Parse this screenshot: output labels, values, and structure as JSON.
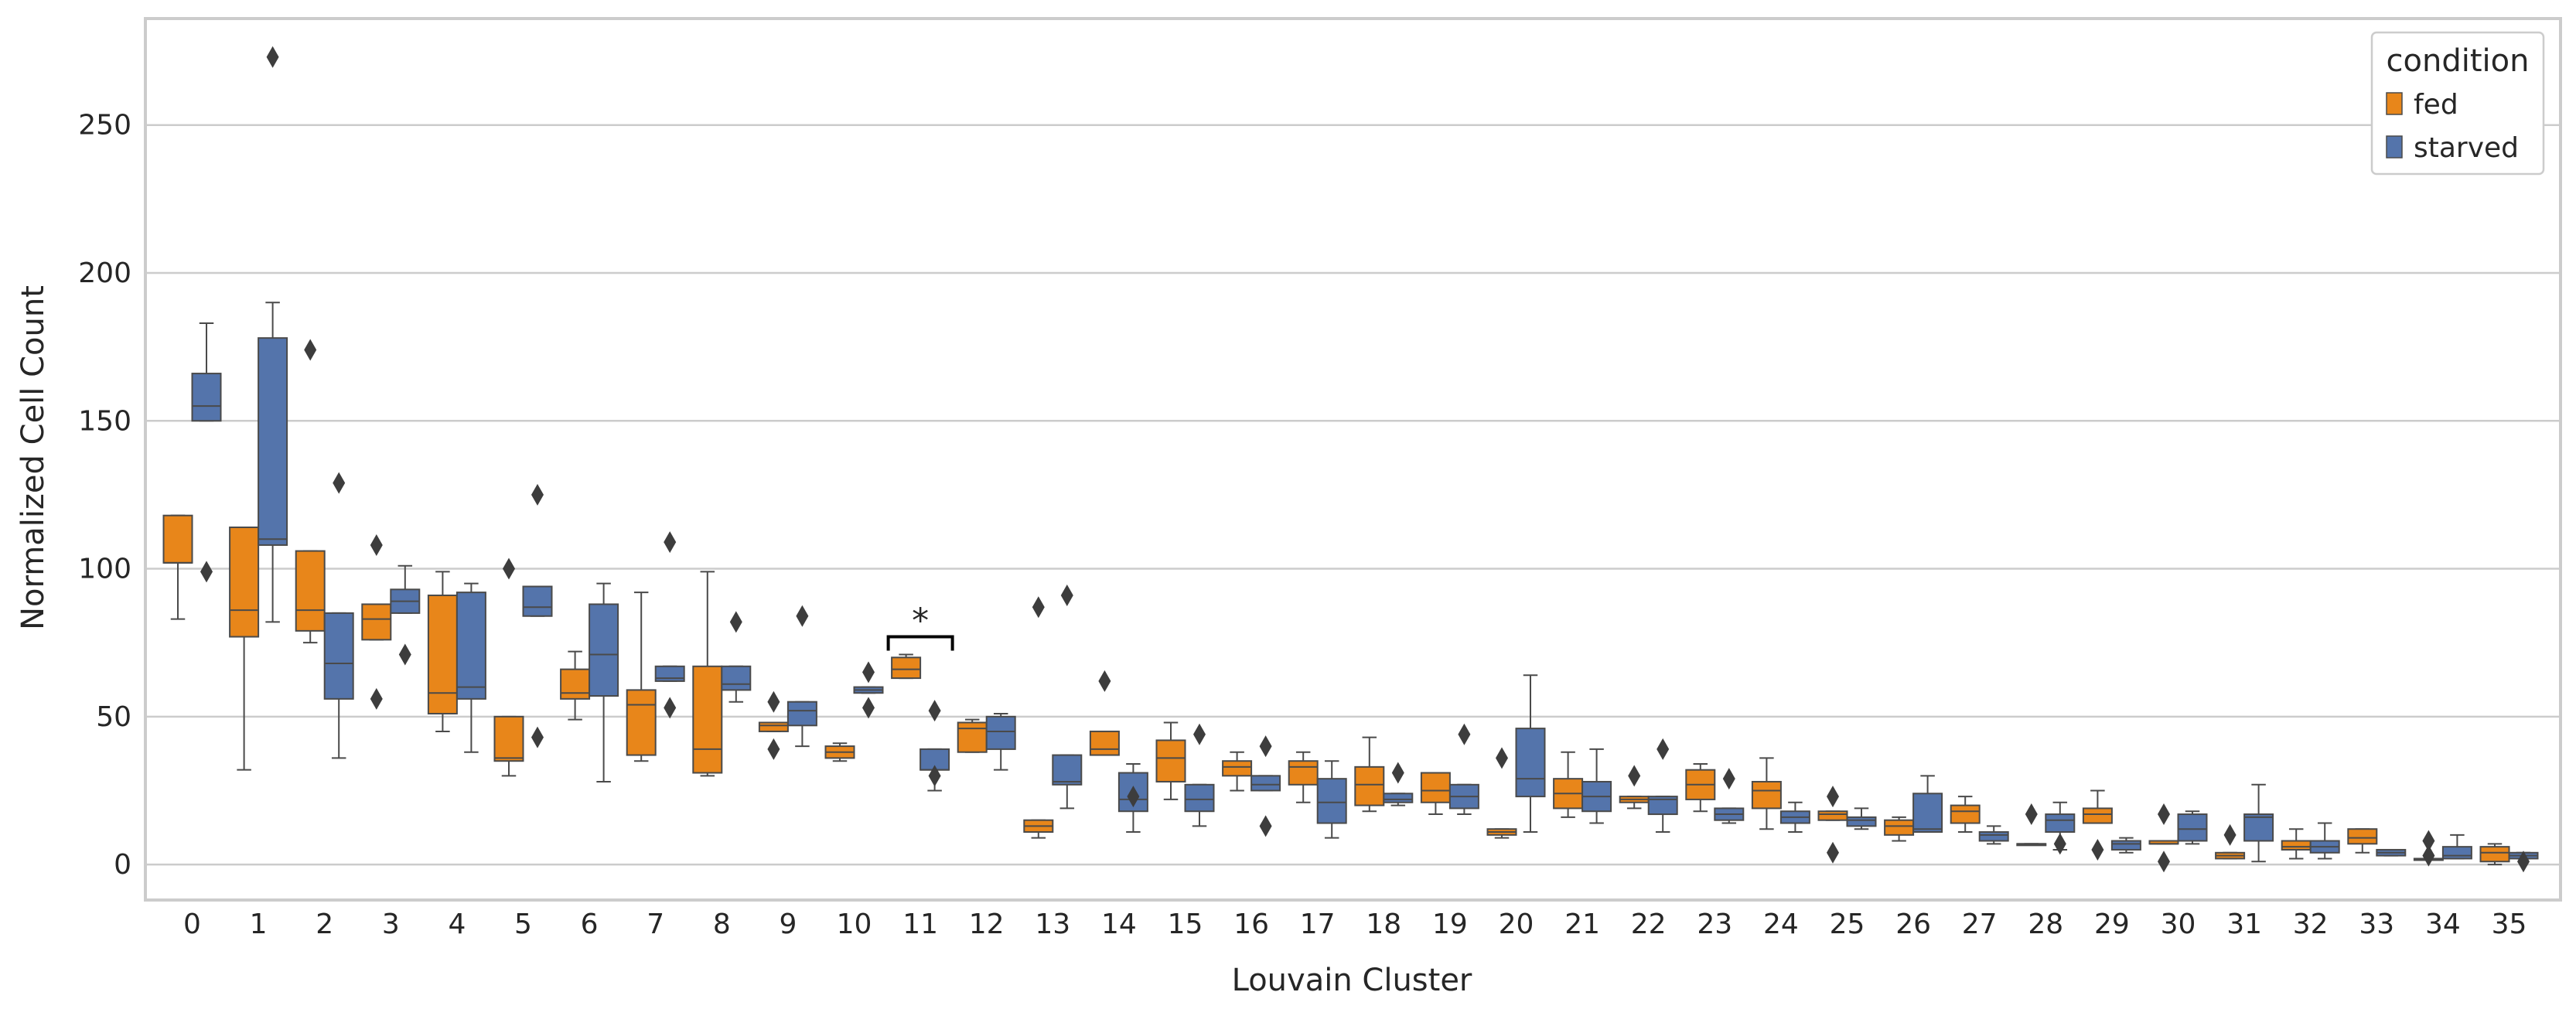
{
  "chart_data": {
    "type": "boxplot",
    "xlabel": "Louvain Cluster",
    "ylabel": "Normalized Cell Count",
    "ylim": [
      -12,
      286
    ],
    "yticks": [
      0,
      50,
      100,
      150,
      200,
      250
    ],
    "grid": true,
    "legend": {
      "title": "condition",
      "placement": "top-right",
      "entries": [
        "fed",
        "starved"
      ]
    },
    "categories": [
      "0",
      "1",
      "2",
      "3",
      "4",
      "5",
      "6",
      "7",
      "8",
      "9",
      "10",
      "11",
      "12",
      "13",
      "14",
      "15",
      "16",
      "17",
      "18",
      "19",
      "20",
      "21",
      "22",
      "23",
      "24",
      "25",
      "26",
      "27",
      "28",
      "29",
      "30",
      "31",
      "32",
      "33",
      "34",
      "35"
    ],
    "colors": {
      "fed": "#e8861a",
      "starved": "#5474ab",
      "edge": "#4a4a4a",
      "outlier": "#3d3d3d"
    },
    "annotations": [
      {
        "text": "*",
        "between": [
          "11",
          "11"
        ],
        "y": 77
      }
    ],
    "series": [
      {
        "name": "fed",
        "boxes": [
          {
            "whislo": 83,
            "q1": 102,
            "med": 102,
            "q3": 118,
            "whishi": 118,
            "fliers": []
          },
          {
            "whislo": 32,
            "q1": 77,
            "med": 86,
            "q3": 114,
            "whishi": 114,
            "fliers": []
          },
          {
            "whislo": 75,
            "q1": 79,
            "med": 86,
            "q3": 106,
            "whishi": 106,
            "fliers": [
              174
            ]
          },
          {
            "whislo": 76,
            "q1": 76,
            "med": 83,
            "q3": 88,
            "whishi": 88,
            "fliers": [
              108,
              56
            ]
          },
          {
            "whislo": 45,
            "q1": 51,
            "med": 58,
            "q3": 91,
            "whishi": 99,
            "fliers": []
          },
          {
            "whislo": 30,
            "q1": 35,
            "med": 36,
            "q3": 50,
            "whishi": 50,
            "fliers": [
              100
            ]
          },
          {
            "whislo": 49,
            "q1": 56,
            "med": 58,
            "q3": 66,
            "whishi": 72,
            "fliers": []
          },
          {
            "whislo": 35,
            "q1": 37,
            "med": 54,
            "q3": 59,
            "whishi": 92,
            "fliers": []
          },
          {
            "whislo": 30,
            "q1": 31,
            "med": 39,
            "q3": 67,
            "whishi": 99,
            "fliers": []
          },
          {
            "whislo": 45,
            "q1": 45,
            "med": 47,
            "q3": 48,
            "whishi": 48,
            "fliers": [
              55,
              39
            ]
          },
          {
            "whislo": 35,
            "q1": 36,
            "med": 38,
            "q3": 40,
            "whishi": 41,
            "fliers": []
          },
          {
            "whislo": 63,
            "q1": 63,
            "med": 66,
            "q3": 70,
            "whishi": 71,
            "fliers": []
          },
          {
            "whislo": 38,
            "q1": 38,
            "med": 46,
            "q3": 48,
            "whishi": 49,
            "fliers": []
          },
          {
            "whislo": 9,
            "q1": 11,
            "med": 13,
            "q3": 15,
            "whishi": 15,
            "fliers": [
              87
            ]
          },
          {
            "whislo": 37,
            "q1": 37,
            "med": 39,
            "q3": 45,
            "whishi": 45,
            "fliers": [
              62
            ]
          },
          {
            "whislo": 22,
            "q1": 28,
            "med": 36,
            "q3": 42,
            "whishi": 48,
            "fliers": []
          },
          {
            "whislo": 25,
            "q1": 30,
            "med": 33,
            "q3": 35,
            "whishi": 38,
            "fliers": []
          },
          {
            "whislo": 21,
            "q1": 27,
            "med": 33,
            "q3": 35,
            "whishi": 38,
            "fliers": []
          },
          {
            "whislo": 18,
            "q1": 20,
            "med": 27,
            "q3": 33,
            "whishi": 43,
            "fliers": []
          },
          {
            "whislo": 17,
            "q1": 21,
            "med": 25,
            "q3": 31,
            "whishi": 31,
            "fliers": []
          },
          {
            "whislo": 9,
            "q1": 10,
            "med": 11,
            "q3": 12,
            "whishi": 12,
            "fliers": [
              36
            ]
          },
          {
            "whislo": 16,
            "q1": 19,
            "med": 24,
            "q3": 29,
            "whishi": 38,
            "fliers": []
          },
          {
            "whislo": 19,
            "q1": 21,
            "med": 22,
            "q3": 23,
            "whishi": 23,
            "fliers": [
              30
            ]
          },
          {
            "whislo": 18,
            "q1": 22,
            "med": 27,
            "q3": 32,
            "whishi": 34,
            "fliers": []
          },
          {
            "whislo": 12,
            "q1": 19,
            "med": 25,
            "q3": 28,
            "whishi": 36,
            "fliers": []
          },
          {
            "whislo": 15,
            "q1": 15,
            "med": 17,
            "q3": 18,
            "whishi": 18,
            "fliers": [
              23,
              4
            ]
          },
          {
            "whislo": 8,
            "q1": 10,
            "med": 13,
            "q3": 15,
            "whishi": 16,
            "fliers": []
          },
          {
            "whislo": 11,
            "q1": 14,
            "med": 18,
            "q3": 20,
            "whishi": 23,
            "fliers": []
          },
          {
            "whislo": 7,
            "q1": 7,
            "med": 7,
            "q3": 7,
            "whishi": 7,
            "fliers": [
              17
            ]
          },
          {
            "whislo": 14,
            "q1": 14,
            "med": 17,
            "q3": 19,
            "whishi": 25,
            "fliers": [
              5
            ]
          },
          {
            "whislo": 7,
            "q1": 7,
            "med": 7,
            "q3": 8,
            "whishi": 8,
            "fliers": [
              17,
              1
            ]
          },
          {
            "whislo": 2,
            "q1": 2,
            "med": 3,
            "q3": 4,
            "whishi": 4,
            "fliers": [
              10
            ]
          },
          {
            "whislo": 2,
            "q1": 5,
            "med": 6,
            "q3": 8,
            "whishi": 12,
            "fliers": []
          },
          {
            "whislo": 4,
            "q1": 7,
            "med": 9,
            "q3": 12,
            "whishi": 12,
            "fliers": []
          },
          {
            "whislo": 2,
            "q1": 2,
            "med": 2,
            "q3": 2,
            "whishi": 2,
            "fliers": [
              8,
              3
            ]
          },
          {
            "whislo": 0,
            "q1": 1,
            "med": 4,
            "q3": 6,
            "whishi": 7,
            "fliers": []
          }
        ]
      },
      {
        "name": "starved",
        "boxes": [
          {
            "whislo": 150,
            "q1": 150,
            "med": 155,
            "q3": 166,
            "whishi": 183,
            "fliers": [
              99
            ]
          },
          {
            "whislo": 82,
            "q1": 108,
            "med": 110,
            "q3": 178,
            "whishi": 190,
            "fliers": [
              273
            ]
          },
          {
            "whislo": 36,
            "q1": 56,
            "med": 68,
            "q3": 85,
            "whishi": 85,
            "fliers": [
              129
            ]
          },
          {
            "whislo": 85,
            "q1": 85,
            "med": 89,
            "q3": 93,
            "whishi": 101,
            "fliers": [
              71
            ]
          },
          {
            "whislo": 38,
            "q1": 56,
            "med": 60,
            "q3": 92,
            "whishi": 95,
            "fliers": []
          },
          {
            "whislo": 84,
            "q1": 84,
            "med": 87,
            "q3": 94,
            "whishi": 94,
            "fliers": [
              125,
              43
            ]
          },
          {
            "whislo": 28,
            "q1": 57,
            "med": 71,
            "q3": 88,
            "whishi": 95,
            "fliers": []
          },
          {
            "whislo": 62,
            "q1": 62,
            "med": 63,
            "q3": 67,
            "whishi": 67,
            "fliers": [
              109,
              53
            ]
          },
          {
            "whislo": 55,
            "q1": 59,
            "med": 61,
            "q3": 67,
            "whishi": 67,
            "fliers": [
              82
            ]
          },
          {
            "whislo": 40,
            "q1": 47,
            "med": 52,
            "q3": 55,
            "whishi": 55,
            "fliers": [
              84
            ]
          },
          {
            "whislo": 58,
            "q1": 58,
            "med": 59,
            "q3": 60,
            "whishi": 60,
            "fliers": [
              65,
              53
            ]
          },
          {
            "whislo": 25,
            "q1": 32,
            "med": 32,
            "q3": 39,
            "whishi": 39,
            "fliers": [
              30,
              52
            ]
          },
          {
            "whislo": 32,
            "q1": 39,
            "med": 45,
            "q3": 50,
            "whishi": 51,
            "fliers": []
          },
          {
            "whislo": 19,
            "q1": 27,
            "med": 28,
            "q3": 37,
            "whishi": 37,
            "fliers": [
              91
            ]
          },
          {
            "whislo": 11,
            "q1": 18,
            "med": 22,
            "q3": 31,
            "whishi": 34,
            "fliers": [
              23
            ]
          },
          {
            "whislo": 13,
            "q1": 18,
            "med": 22,
            "q3": 27,
            "whishi": 27,
            "fliers": [
              44
            ]
          },
          {
            "whislo": 25,
            "q1": 25,
            "med": 27,
            "q3": 30,
            "whishi": 30,
            "fliers": [
              40,
              13
            ]
          },
          {
            "whislo": 9,
            "q1": 14,
            "med": 21,
            "q3": 29,
            "whishi": 35,
            "fliers": []
          },
          {
            "whislo": 20,
            "q1": 21,
            "med": 22,
            "q3": 24,
            "whishi": 24,
            "fliers": [
              31
            ]
          },
          {
            "whislo": 17,
            "q1": 19,
            "med": 23,
            "q3": 27,
            "whishi": 27,
            "fliers": [
              44
            ]
          },
          {
            "whislo": 11,
            "q1": 23,
            "med": 29,
            "q3": 46,
            "whishi": 64,
            "fliers": []
          },
          {
            "whislo": 14,
            "q1": 18,
            "med": 23,
            "q3": 28,
            "whishi": 39,
            "fliers": []
          },
          {
            "whislo": 11,
            "q1": 17,
            "med": 22,
            "q3": 23,
            "whishi": 23,
            "fliers": [
              39
            ]
          },
          {
            "whislo": 14,
            "q1": 15,
            "med": 17,
            "q3": 19,
            "whishi": 19,
            "fliers": [
              29
            ]
          },
          {
            "whislo": 11,
            "q1": 14,
            "med": 16,
            "q3": 18,
            "whishi": 21,
            "fliers": []
          },
          {
            "whislo": 12,
            "q1": 13,
            "med": 15,
            "q3": 16,
            "whishi": 19,
            "fliers": []
          },
          {
            "whislo": 11,
            "q1": 11,
            "med": 12,
            "q3": 24,
            "whishi": 30,
            "fliers": []
          },
          {
            "whislo": 7,
            "q1": 8,
            "med": 10,
            "q3": 11,
            "whishi": 13,
            "fliers": []
          },
          {
            "whislo": 5,
            "q1": 11,
            "med": 15,
            "q3": 17,
            "whishi": 21,
            "fliers": [
              7
            ]
          },
          {
            "whislo": 4,
            "q1": 5,
            "med": 7,
            "q3": 8,
            "whishi": 9,
            "fliers": []
          },
          {
            "whislo": 7,
            "q1": 8,
            "med": 12,
            "q3": 17,
            "whishi": 18,
            "fliers": []
          },
          {
            "whislo": 1,
            "q1": 8,
            "med": 16,
            "q3": 17,
            "whishi": 27,
            "fliers": []
          },
          {
            "whislo": 2,
            "q1": 4,
            "med": 6,
            "q3": 8,
            "whishi": 14,
            "fliers": []
          },
          {
            "whislo": 3,
            "q1": 3,
            "med": 4,
            "q3": 5,
            "whishi": 5,
            "fliers": []
          },
          {
            "whislo": 2,
            "q1": 2,
            "med": 3,
            "q3": 6,
            "whishi": 10,
            "fliers": []
          },
          {
            "whislo": 2,
            "q1": 2,
            "med": 3,
            "q3": 4,
            "whishi": 4,
            "fliers": [
              1
            ]
          }
        ]
      }
    ]
  }
}
